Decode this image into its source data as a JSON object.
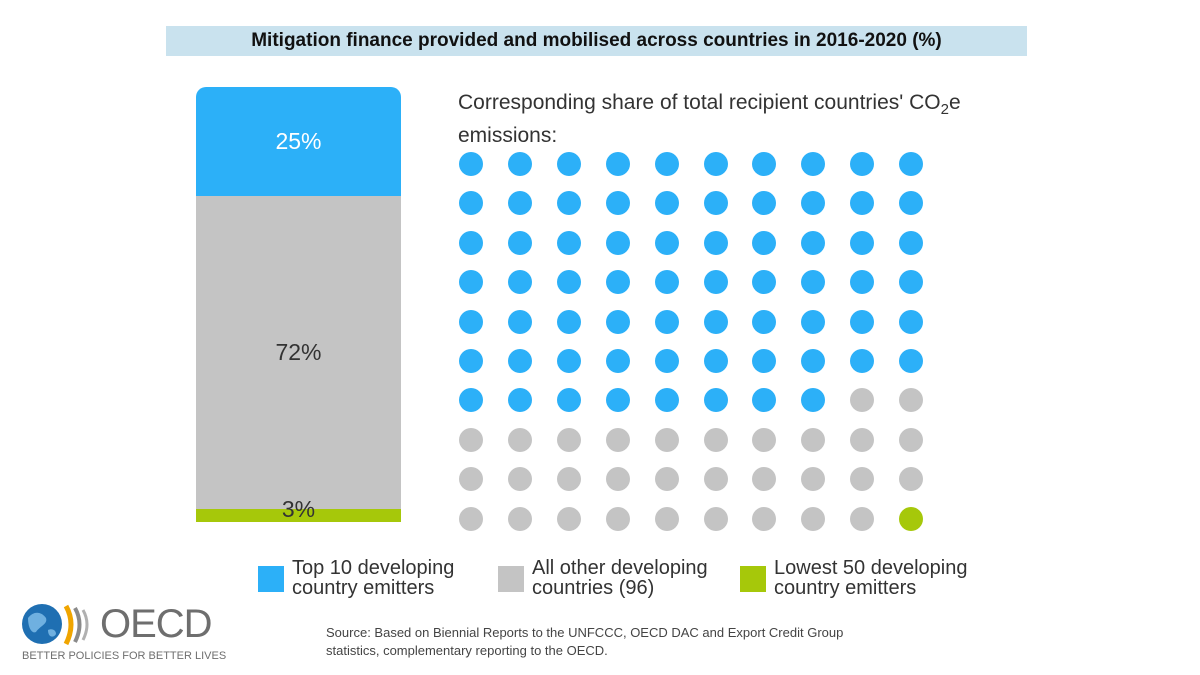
{
  "title": "Mitigation finance provided and mobilised across countries in 2016-2020 (%)",
  "dots_heading": {
    "before_sub": "Corresponding share of total recipient countries' CO",
    "sub": "2",
    "after_sub": "e emissions:"
  },
  "colors": {
    "top10": "#2cb0f8",
    "other": "#c4c4c4",
    "lowest50": "#a6c80a",
    "title_bg": "#c9e2ee"
  },
  "legend": [
    {
      "label_line1": "Top 10 developing",
      "label_line2": "country emitters",
      "color": "#2cb0f8"
    },
    {
      "label_line1": "All other developing",
      "label_line2": "countries (96)",
      "color": "#c4c4c4"
    },
    {
      "label_line1": "Lowest 50 developing",
      "label_line2": "country emitters",
      "color": "#a6c80a"
    }
  ],
  "chart_data": [
    {
      "type": "bar",
      "subtype": "100% stacked",
      "title": "Mitigation finance provided and mobilised across countries in 2016-2020 (%)",
      "series": [
        {
          "name": "Top 10 developing country emitters",
          "value": 25,
          "label": "25%",
          "color": "#2cb0f8"
        },
        {
          "name": "All other developing countries (96)",
          "value": 72,
          "label": "72%",
          "color": "#c4c4c4"
        },
        {
          "name": "Lowest 50 developing country emitters",
          "value": 3,
          "label": "3%",
          "color": "#a6c80a"
        }
      ]
    },
    {
      "type": "waffle",
      "title": "Corresponding share of total recipient countries' CO2e emissions:",
      "grid": {
        "rows": 10,
        "cols": 10
      },
      "series": [
        {
          "name": "Top 10 developing country emitters",
          "count": 68,
          "color": "#2cb0f8"
        },
        {
          "name": "All other developing countries (96)",
          "count": 31,
          "color": "#c4c4c4"
        },
        {
          "name": "Lowest 50 developing country emitters",
          "count": 1,
          "color": "#a6c80a"
        }
      ]
    }
  ],
  "logo": {
    "wordmark": "OECD",
    "tagline": "BETTER POLICIES FOR BETTER LIVES"
  },
  "source": {
    "line1": "Source: Based on Biennial Reports to the UNFCCC, OECD DAC and Export Credit Group",
    "line2": "statistics, complementary reporting to the OECD."
  }
}
